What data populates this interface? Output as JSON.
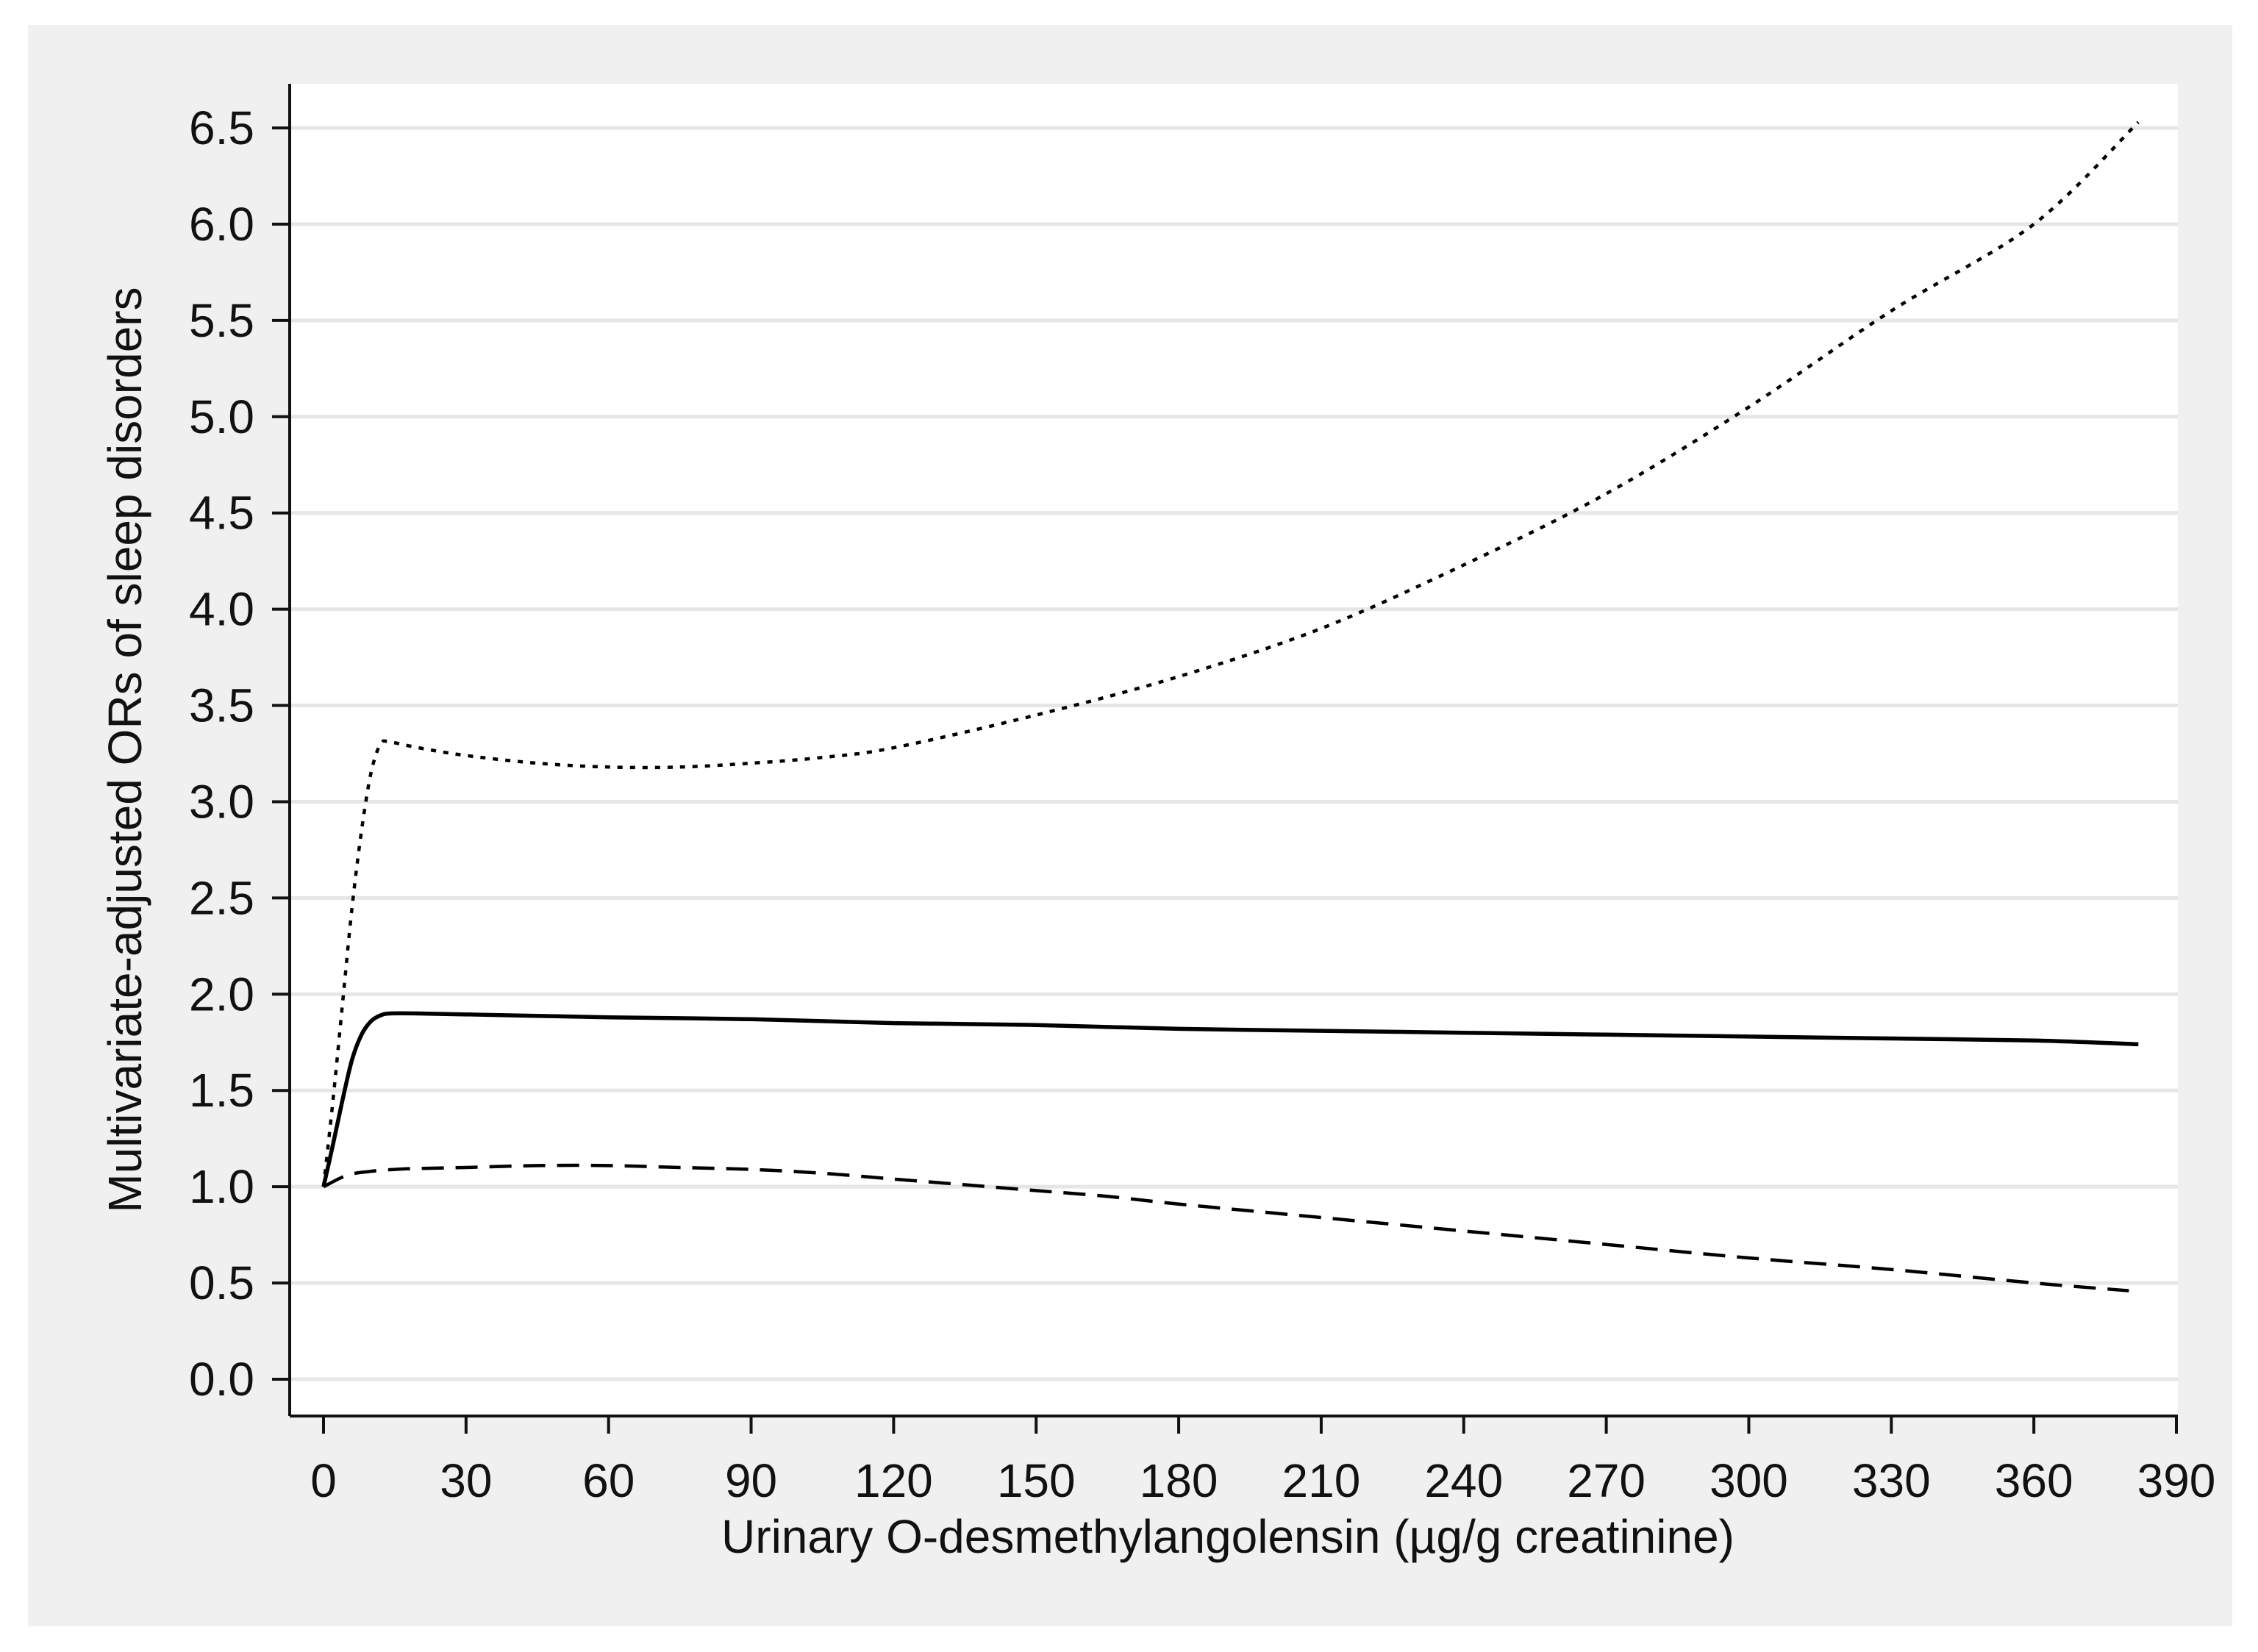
{
  "chart_data": {
    "type": "line",
    "title": "",
    "xlabel": "Urinary O-desmethylangolensin (µg/g creatinine)",
    "ylabel": "Multivariate-adjusted ORs of sleep disorders",
    "xlim": [
      0,
      390
    ],
    "ylim": [
      0,
      6.5
    ],
    "x_ticks": [
      "0",
      "30",
      "60",
      "90",
      "120",
      "150",
      "180",
      "210",
      "240",
      "270",
      "300",
      "330",
      "360",
      "390"
    ],
    "y_ticks": [
      "0.0",
      "0.5",
      "1.0",
      "1.5",
      "2.0",
      "2.5",
      "3.0",
      "3.5",
      "4.0",
      "4.5",
      "5.0",
      "5.5",
      "6.0",
      "6.5"
    ],
    "grid": "horizontal",
    "legend": "none",
    "series": [
      {
        "style": "solid",
        "color": "#000000",
        "x": [
          0,
          2,
          4,
          6,
          8,
          10,
          12,
          14,
          20,
          40,
          60,
          90,
          120,
          150,
          180,
          210,
          240,
          270,
          300,
          330,
          360,
          382
        ],
        "y": [
          1.0,
          1.22,
          1.45,
          1.66,
          1.79,
          1.86,
          1.89,
          1.9,
          1.9,
          1.89,
          1.88,
          1.87,
          1.85,
          1.84,
          1.82,
          1.81,
          1.8,
          1.79,
          1.78,
          1.77,
          1.76,
          1.74
        ]
      },
      {
        "style": "dashed",
        "color": "#000000",
        "x": [
          0,
          5,
          10,
          15,
          20,
          30,
          45,
          60,
          75,
          90,
          105,
          120,
          135,
          150,
          165,
          180,
          210,
          240,
          270,
          300,
          330,
          360,
          380
        ],
        "y": [
          1.0,
          1.06,
          1.08,
          1.09,
          1.095,
          1.1,
          1.11,
          1.11,
          1.1,
          1.09,
          1.07,
          1.04,
          1.01,
          0.98,
          0.95,
          0.91,
          0.84,
          0.77,
          0.7,
          0.63,
          0.57,
          0.5,
          0.46
        ]
      },
      {
        "style": "dotted",
        "color": "#000000",
        "x": [
          0,
          2,
          4,
          6,
          8,
          10,
          12,
          14,
          20,
          30,
          45,
          60,
          75,
          90,
          105,
          120,
          150,
          180,
          210,
          240,
          270,
          300,
          330,
          360,
          382
        ],
        "y": [
          1.0,
          1.45,
          1.95,
          2.45,
          2.85,
          3.15,
          3.3,
          3.31,
          3.28,
          3.24,
          3.2,
          3.18,
          3.18,
          3.2,
          3.23,
          3.28,
          3.45,
          3.65,
          3.9,
          4.23,
          4.6,
          5.05,
          5.55,
          6.0,
          6.53
        ]
      }
    ]
  }
}
